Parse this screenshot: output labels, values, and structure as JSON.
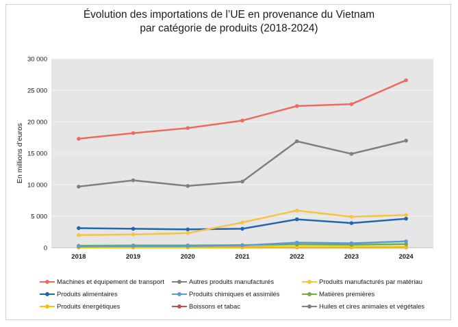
{
  "chart_data": {
    "type": "line",
    "title_line1": "Évolution des importations de l’UE en provenance du Vietnam",
    "title_line2": "par catégorie de produits (2018-2024)",
    "xlabel": "",
    "ylabel": "En millions d’euros",
    "categories": [
      "2018",
      "2019",
      "2020",
      "2021",
      "2022",
      "2023",
      "2024"
    ],
    "ylim": [
      0,
      30000
    ],
    "yticks": [
      0,
      5000,
      10000,
      15000,
      20000,
      25000,
      30000
    ],
    "ytick_labels": [
      "0",
      "5 000",
      "10 000",
      "15 000",
      "20 000",
      "25 000",
      "30 000"
    ],
    "grid": true,
    "legend_position": "bottom",
    "series": [
      {
        "name": "Machines et équipement de transport",
        "color": "#ee6a5f",
        "values": [
          17300,
          18200,
          19000,
          20200,
          22500,
          22800,
          26600
        ]
      },
      {
        "name": "Autres produits manufacturés",
        "color": "#7f7f7f",
        "values": [
          9700,
          10700,
          9800,
          10500,
          16900,
          14900,
          17000
        ]
      },
      {
        "name": "Produits manufacturés par matériau",
        "color": "#f6c342",
        "values": [
          2000,
          2100,
          2300,
          4000,
          5900,
          4900,
          5200
        ]
      },
      {
        "name": "Produits alimentaires",
        "color": "#1f65b0",
        "values": [
          3100,
          3000,
          2900,
          3000,
          4500,
          3900,
          4600
        ]
      },
      {
        "name": "Produits chimiques et assimilés",
        "color": "#5b9bd5",
        "values": [
          200,
          250,
          250,
          350,
          800,
          700,
          1000
        ]
      },
      {
        "name": "Matières premières",
        "color": "#70ad47",
        "values": [
          300,
          350,
          350,
          400,
          500,
          450,
          550
        ]
      },
      {
        "name": "Produits énergétiques",
        "color": "#ffc000",
        "values": [
          30,
          30,
          30,
          40,
          80,
          60,
          60
        ]
      },
      {
        "name": "Boissons et tabac",
        "color": "#c0504d",
        "values": [
          20,
          20,
          20,
          30,
          40,
          40,
          40
        ]
      },
      {
        "name": "Huiles et cires animales et végétales",
        "color": "#7f7f7f",
        "values": [
          40,
          50,
          50,
          60,
          90,
          70,
          80
        ]
      }
    ]
  }
}
